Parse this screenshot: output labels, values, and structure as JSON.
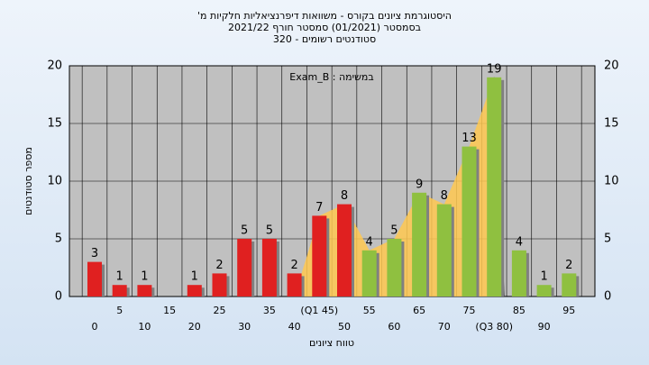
{
  "chart_data": {
    "type": "bar",
    "title": "היסטוגרמת ציונים בקורס - משוואות דיפרנציאליות חלקיות מ'",
    "subtitle": [
      "בסמסטר  (01/2021)  סמסטר חורף 2021/22",
      "סטודנטים רשומים - 320"
    ],
    "annotation": "Exam_B : במשימה",
    "x_label": "טווח ציונים",
    "y_label": "מספר סטודנטים",
    "categories": [
      "0",
      "5",
      "10",
      "15",
      "20",
      "25",
      "30",
      "35",
      "40",
      "(Q1 45)",
      "50",
      "55",
      "60",
      "65",
      "70",
      "75",
      "(Q3 80)",
      "85",
      "90",
      "95"
    ],
    "values": [
      3,
      1,
      1,
      0,
      1,
      2,
      5,
      5,
      2,
      7,
      8,
      4,
      5,
      9,
      8,
      13,
      19,
      4,
      1,
      2
    ],
    "colors": [
      "#e02020",
      "#e02020",
      "#e02020",
      "#e02020",
      "#e02020",
      "#e02020",
      "#e02020",
      "#e02020",
      "#e02020",
      "#e02020",
      "#e02020",
      "#8fc040",
      "#8fc040",
      "#8fc040",
      "#8fc040",
      "#8fc040",
      "#8fc040",
      "#8fc040",
      "#8fc040",
      "#8fc040"
    ],
    "band_color": "#ffc850",
    "ylim": [
      0,
      20
    ],
    "yticks": [
      0,
      5,
      10,
      15,
      20
    ],
    "grid": true
  }
}
